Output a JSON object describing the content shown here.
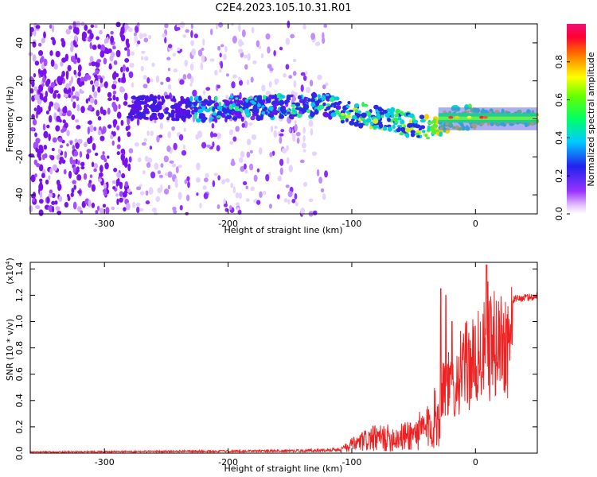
{
  "figure": {
    "title": "C2E4.2023.105.10.31.R01"
  },
  "chart_data": [
    {
      "type": "heatmap",
      "xlabel": "Height of straight line (km)",
      "ylabel": "Frequency (Hz)",
      "xlim": [
        -360,
        50
      ],
      "ylim": [
        -50,
        50
      ],
      "xticks": [
        -300,
        -200,
        -100,
        0
      ],
      "yticks": [
        -40,
        -20,
        0,
        20,
        40
      ],
      "colorbar": {
        "label": "Normalized spectral amplitude",
        "range": [
          0.0,
          1.0
        ],
        "ticks": [
          0.0,
          0.2,
          0.4,
          0.6,
          0.8
        ],
        "colormap": "rainbow (white-violet-blue-cyan-green-yellow-red-magenta)"
      },
      "ridge": [
        {
          "x": -270,
          "y": 6
        },
        {
          "x": -220,
          "y": 5
        },
        {
          "x": -180,
          "y": 6
        },
        {
          "x": -120,
          "y": 7
        },
        {
          "x": -100,
          "y": 3
        },
        {
          "x": -70,
          "y": 0
        },
        {
          "x": -45,
          "y": -5
        },
        {
          "x": -30,
          "y": -3
        },
        {
          "x": -20,
          "y": 0
        },
        {
          "x": 0,
          "y": 1
        },
        {
          "x": 50,
          "y": 0
        }
      ],
      "grid": false
    },
    {
      "type": "line",
      "xlabel": "Height of straight line (km)",
      "ylabel": "SNR (10 * v/v)",
      "ylabel_multiplier": "(x10",
      "ylabel_multiplier_exp": "4",
      "ylabel_multiplier_close": ")",
      "xlim": [
        -360,
        50
      ],
      "ylim": [
        0,
        1.45
      ],
      "xticks": [
        -300,
        -200,
        -100,
        0
      ],
      "yticks": [
        0.0,
        0.2,
        0.4,
        0.6,
        0.8,
        1.0,
        1.2,
        1.4
      ],
      "series": [
        {
          "color": "#ee2222",
          "envelope": [
            {
              "x": -360,
              "y": 0.01
            },
            {
              "x": -150,
              "y": 0.02
            },
            {
              "x": -110,
              "y": 0.03
            },
            {
              "x": -100,
              "y": 0.1
            },
            {
              "x": -85,
              "y": 0.18
            },
            {
              "x": -60,
              "y": 0.2
            },
            {
              "x": -40,
              "y": 0.3
            },
            {
              "x": -30,
              "y": 0.5
            },
            {
              "x": -25,
              "y": 0.8
            },
            {
              "x": -20,
              "y": 0.65
            },
            {
              "x": -10,
              "y": 0.9
            },
            {
              "x": 0,
              "y": 0.95
            },
            {
              "x": 10,
              "y": 1.1
            },
            {
              "x": 25,
              "y": 1.18
            },
            {
              "x": 50,
              "y": 1.21
            }
          ],
          "spikes": [
            {
              "x": -28,
              "y": 1.25
            },
            {
              "x": -24,
              "y": 1.2
            },
            {
              "x": -19,
              "y": 1.0
            },
            {
              "x": 9,
              "y": 1.43
            },
            {
              "x": 10,
              "y": 1.3
            }
          ]
        }
      ],
      "grid": false
    }
  ]
}
